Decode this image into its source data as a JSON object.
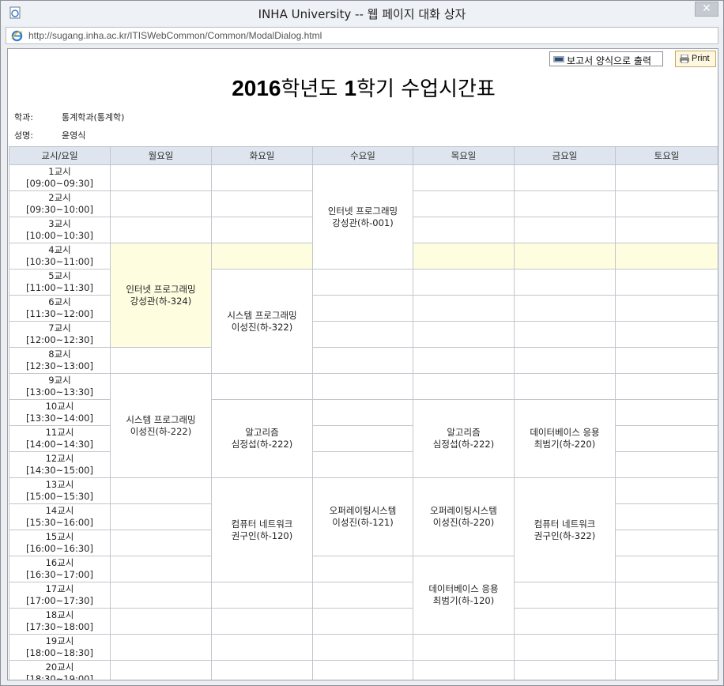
{
  "window": {
    "title": "INHA University -- 웹 페이지 대화 상자",
    "close_label": "✕",
    "url": "http://sugang.inha.ac.kr/ITISWebCommon/Common/ModalDialog.html"
  },
  "toolbar": {
    "report_label": "보고서 양식으로 출력",
    "print_label": "Print"
  },
  "heading": {
    "year": "2016",
    "year_suffix": "학년도 ",
    "term": "1",
    "term_suffix": "학기 수업시간표"
  },
  "student": {
    "dept_label": "학과:",
    "dept_value": "통계학과(통계학)",
    "name_label": "성명:",
    "name_value": "윤영식"
  },
  "timetable": {
    "headers": [
      "교시/요일",
      "월요일",
      "화요일",
      "수요일",
      "목요일",
      "금요일",
      "토요일"
    ],
    "periods": [
      "1교시\n[09:00~09:30]",
      "2교시\n[09:30~10:00]",
      "3교시\n[10:00~10:30]",
      "4교시\n[10:30~11:00]",
      "5교시\n[11:00~11:30]",
      "6교시\n[11:30~12:00]",
      "7교시\n[12:00~12:30]",
      "8교시\n[12:30~13:00]",
      "9교시\n[13:00~13:30]",
      "10교시\n[13:30~14:00]",
      "11교시\n[14:00~14:30]",
      "12교시\n[14:30~15:00]",
      "13교시\n[15:00~15:30]",
      "14교시\n[15:30~16:00]",
      "15교시\n[16:00~16:30]",
      "16교시\n[16:30~17:00]",
      "17교시\n[17:00~17:30]",
      "18교시\n[17:30~18:00]",
      "19교시\n[18:00~18:30]",
      "20교시\n[18:30~19:00]"
    ],
    "courses": [
      {
        "day": 2,
        "start": 0,
        "span": 4,
        "name": "인터넷 프로그래밍",
        "room": "강성관(하-001)",
        "highlight": false
      },
      {
        "day": 0,
        "start": 3,
        "span": 4,
        "name": "인터넷 프로그래밍",
        "room": "강성관(하-324)",
        "highlight": true
      },
      {
        "day": 1,
        "start": 4,
        "span": 4,
        "name": "시스템 프로그래밍",
        "room": "이성진(하-322)",
        "highlight": false
      },
      {
        "day": 0,
        "start": 8,
        "span": 4,
        "name": "시스템 프로그래밍",
        "room": "이성진(하-222)",
        "highlight": false
      },
      {
        "day": 1,
        "start": 9,
        "span": 3,
        "name": "알고리즘",
        "room": "심정섭(하-222)",
        "highlight": false
      },
      {
        "day": 3,
        "start": 9,
        "span": 3,
        "name": "알고리즘",
        "room": "심정섭(하-222)",
        "highlight": false
      },
      {
        "day": 4,
        "start": 9,
        "span": 3,
        "name": "데이터베이스 응용",
        "room": "최범기(하-220)",
        "highlight": false
      },
      {
        "day": 1,
        "start": 12,
        "span": 4,
        "name": "컴퓨터 네트워크",
        "room": "권구인(하-120)",
        "highlight": false
      },
      {
        "day": 2,
        "start": 12,
        "span": 3,
        "name": "오퍼레이팅시스템",
        "room": "이성진(하-121)",
        "highlight": false
      },
      {
        "day": 3,
        "start": 12,
        "span": 3,
        "name": "오퍼레이팅시스템",
        "room": "이성진(하-220)",
        "highlight": false
      },
      {
        "day": 4,
        "start": 12,
        "span": 4,
        "name": "컴퓨터 네트워크",
        "room": "권구인(하-322)",
        "highlight": false
      },
      {
        "day": 3,
        "start": 15,
        "span": 3,
        "name": "데이터베이스 응용",
        "room": "최범기(하-120)",
        "highlight": false
      }
    ],
    "highlight_row": 3
  },
  "colors": {
    "header_bg": "#dee5ee",
    "highlight_bg": "#fffde0",
    "border": "#c2c6cd"
  }
}
